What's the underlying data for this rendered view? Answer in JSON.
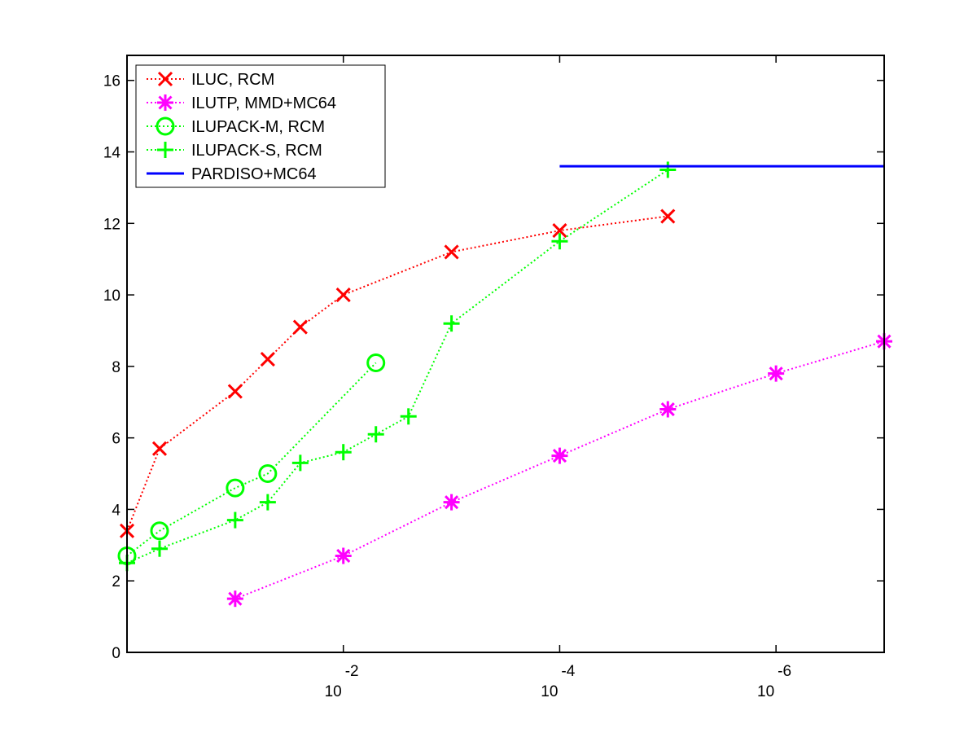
{
  "chart_data": {
    "type": "line",
    "xscale": "log",
    "xaxis_reversed": true,
    "xlim": [
      1,
      1e-07
    ],
    "ylim": [
      0,
      16.7
    ],
    "yticks": [
      0,
      2,
      4,
      6,
      8,
      10,
      12,
      14,
      16
    ],
    "xticks": [
      {
        "value": 0.01,
        "base": "10",
        "exp": "-2"
      },
      {
        "value": 0.0001,
        "base": "10",
        "exp": "-4"
      },
      {
        "value": 1e-06,
        "base": "10",
        "exp": "-6"
      }
    ],
    "grid": false,
    "legend_position": "top-left",
    "series": [
      {
        "name": "ILUC, RCM",
        "color": "#ff0000",
        "marker": "x",
        "linestyle": "dotted",
        "x": [
          1,
          0.5,
          0.1,
          0.05,
          0.025,
          0.01,
          0.001,
          0.0001,
          1e-05
        ],
        "y": [
          3.4,
          5.7,
          7.3,
          8.2,
          9.1,
          10.0,
          11.2,
          11.8,
          12.2
        ]
      },
      {
        "name": "ILUTP, MMD+MC64",
        "color": "#ff00ff",
        "marker": "asterisk",
        "linestyle": "dotted",
        "x": [
          0.1,
          0.01,
          0.001,
          0.0001,
          1e-05,
          1e-06,
          1e-07
        ],
        "y": [
          1.5,
          2.7,
          4.2,
          5.5,
          6.8,
          7.8,
          8.7
        ]
      },
      {
        "name": "ILUPACK-M, RCM",
        "color": "#00ff00",
        "marker": "circle",
        "linestyle": "dotted",
        "x": [
          1,
          0.5,
          0.1,
          0.05,
          0.005
        ],
        "y": [
          2.7,
          3.4,
          4.6,
          5.0,
          8.1
        ]
      },
      {
        "name": "ILUPACK-S, RCM",
        "color": "#00ff00",
        "marker": "plus",
        "linestyle": "dotted",
        "x": [
          1,
          0.5,
          0.1,
          0.05,
          0.025,
          0.01,
          0.005,
          0.0025,
          0.001,
          0.0001,
          1e-05
        ],
        "y": [
          2.5,
          2.9,
          3.7,
          4.2,
          5.3,
          5.6,
          6.1,
          6.6,
          9.2,
          11.5,
          13.5
        ]
      },
      {
        "name": "PARDISO+MC64",
        "color": "#0000ff",
        "marker": "none",
        "linestyle": "solid",
        "x": [
          0.0001,
          1e-07
        ],
        "y": [
          13.6,
          13.6
        ]
      }
    ]
  }
}
